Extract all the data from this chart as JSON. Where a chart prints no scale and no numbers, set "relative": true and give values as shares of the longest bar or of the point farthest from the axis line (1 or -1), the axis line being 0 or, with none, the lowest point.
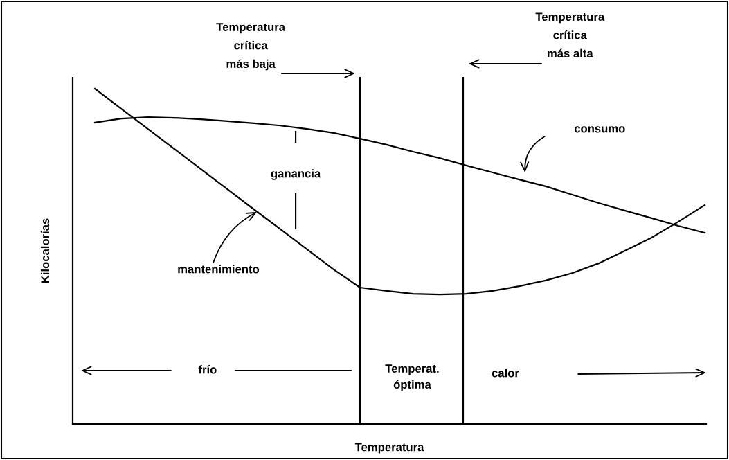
{
  "chart_data": {
    "type": "line",
    "relative": true,
    "xlabel": "Temperatura",
    "ylabel": "Kilocalorías",
    "categories": [
      null,
      null,
      null,
      null,
      null,
      null,
      null,
      null,
      null,
      null,
      null,
      null,
      null,
      null,
      null,
      null,
      null,
      null,
      null,
      null,
      null,
      null,
      null,
      null
    ],
    "series": [
      {
        "color": "#000000",
        "values": [
          1.0,
          0.94,
          0.88,
          0.82,
          0.76,
          0.7,
          0.64,
          0.581,
          0.521,
          0.461,
          0.407,
          0.397,
          0.388,
          0.386,
          0.388,
          0.397,
          0.411,
          0.428,
          0.45,
          0.479,
          0.517,
          0.556,
          0.603,
          0.653
        ]
      },
      {
        "color": "#000000",
        "values": [
          0.899,
          0.911,
          0.915,
          0.913,
          0.909,
          0.903,
          0.897,
          0.89,
          0.88,
          0.868,
          0.851,
          0.833,
          0.812,
          0.793,
          0.771,
          0.75,
          0.729,
          0.709,
          0.684,
          0.659,
          0.636,
          0.614,
          0.591,
          0.57
        ]
      }
    ],
    "annotations": [
      "ganancia",
      "consumo",
      "mantenimiento",
      "frío",
      "Temperat.\nóptima",
      "calor",
      "Temperatura\ncrítica\nmás baja",
      "Temperatura\ncrítica\nmás alta"
    ]
  }
}
